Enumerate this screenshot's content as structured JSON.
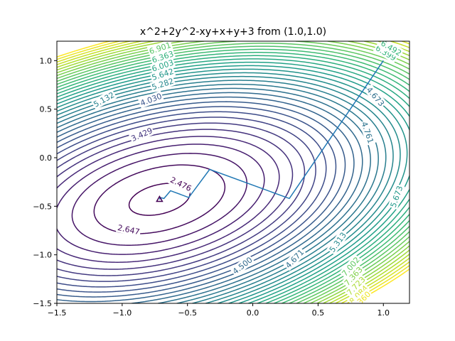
{
  "chart_data": {
    "type": "contour",
    "title": "x^2+2y^2-xy+x+y+3 from (1.0,1.0)",
    "xlabel": "",
    "ylabel": "",
    "xlim": [
      -1.5,
      1.2
    ],
    "ylim": [
      -1.5,
      1.2
    ],
    "x_ticks": [
      -1.5,
      -1.0,
      -0.5,
      0.0,
      0.5,
      1.0
    ],
    "x_tick_labels": [
      "−1.5",
      "−1.0",
      "−0.5",
      "0.0",
      "0.5",
      "1.0"
    ],
    "y_ticks": [
      -1.5,
      -1.0,
      -0.5,
      0.0,
      0.5,
      1.0
    ],
    "y_tick_labels": [
      "−1.5",
      "−1.0",
      "−0.5",
      "0.0",
      "0.5",
      "1.0"
    ],
    "grid": false,
    "colormap": "viridis",
    "function": {
      "a": 1,
      "b": 2,
      "c": -1,
      "d": 1,
      "e": 1,
      "f": 3
    },
    "level_range": [
      2.4762,
      8.5
    ],
    "level_count": 36,
    "colors": {
      "line": "#1f77b4"
    },
    "contour_labels": [
      {
        "text": "2.476",
        "x": -0.55,
        "y": -0.27,
        "value": 2.4762
      },
      {
        "text": "2.647",
        "x": -0.95,
        "y": -0.74,
        "value": 2.647
      },
      {
        "text": "3.429",
        "x": -0.85,
        "y": 0.24,
        "value": 3.429
      },
      {
        "text": "4.030",
        "x": -0.78,
        "y": 0.6,
        "value": 4.03
      },
      {
        "text": "4.500",
        "x": -0.08,
        "y": -1.11,
        "value": 4.5
      },
      {
        "text": "4.671",
        "x": 0.32,
        "y": -1.04,
        "value": 4.671
      },
      {
        "text": "4.761",
        "x": 0.88,
        "y": 0.26,
        "value": 4.761
      },
      {
        "text": "4.673",
        "x": 0.94,
        "y": 0.63,
        "value": 4.673
      },
      {
        "text": "5.132",
        "x": -1.14,
        "y": 0.6,
        "value": 5.132
      },
      {
        "text": "5.673",
        "x": 1.1,
        "y": -0.4,
        "value": 5.673
      },
      {
        "text": "5.313",
        "x": 0.65,
        "y": -0.87,
        "value": 5.313
      },
      {
        "text": "5.282",
        "x": -0.69,
        "y": 0.76,
        "value": 5.282
      },
      {
        "text": "5.642",
        "x": -0.69,
        "y": 0.86,
        "value": 5.642
      },
      {
        "text": "6.003",
        "x": -0.69,
        "y": 0.95,
        "value": 6.003
      },
      {
        "text": "6.363",
        "x": -0.69,
        "y": 1.04,
        "value": 6.363
      },
      {
        "text": "6.901",
        "x": -0.71,
        "y": 1.13,
        "value": 6.901
      },
      {
        "text": "6.399",
        "x": 1.02,
        "y": 1.08,
        "value": 6.399
      },
      {
        "text": "6.492",
        "x": 1.06,
        "y": 1.13,
        "value": 6.492
      },
      {
        "text": "7.002",
        "x": 0.75,
        "y": -1.12,
        "value": 7.002
      },
      {
        "text": "7.363",
        "x": 0.77,
        "y": -1.22,
        "value": 7.363
      },
      {
        "text": "7.723",
        "x": 0.79,
        "y": -1.32,
        "value": 7.723
      },
      {
        "text": "8.084",
        "x": 0.81,
        "y": -1.41,
        "value": 8.084
      },
      {
        "text": "8.360",
        "x": 0.83,
        "y": -1.47,
        "value": 8.36
      }
    ],
    "path": [
      {
        "x": 1.0,
        "y": 1.0
      },
      {
        "x": 0.28,
        "y": -0.42
      },
      {
        "x": -0.33,
        "y": -0.12
      },
      {
        "x": -0.49,
        "y": -0.41
      },
      {
        "x": -0.63,
        "y": -0.34
      },
      {
        "x": -0.68,
        "y": -0.42
      },
      {
        "x": -0.71,
        "y": -0.41
      },
      {
        "x": -0.713,
        "y": -0.428
      },
      {
        "x": -0.714,
        "y": -0.428
      }
    ],
    "start_point": {
      "x": 1.0,
      "y": 1.0
    },
    "start_point_label": "(1.0,1.0)"
  }
}
